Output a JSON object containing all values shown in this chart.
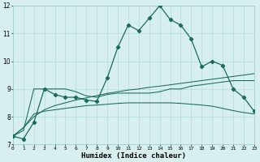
{
  "xlabel": "Humidex (Indice chaleur)",
  "background_color": "#d7f0ef",
  "line_color": "#1a6b5a",
  "x": [
    0,
    1,
    2,
    3,
    4,
    5,
    6,
    7,
    8,
    9,
    10,
    11,
    12,
    13,
    14,
    15,
    16,
    17,
    18,
    19,
    20,
    21,
    22,
    23
  ],
  "y_main": [
    7.3,
    7.2,
    7.8,
    9.0,
    8.8,
    8.7,
    8.7,
    8.6,
    8.55,
    9.4,
    10.5,
    11.3,
    11.1,
    11.55,
    12.0,
    11.5,
    11.3,
    10.8,
    9.8,
    10.0,
    9.85,
    9.0,
    8.7,
    8.2
  ],
  "y_flat": [
    7.3,
    7.5,
    9.0,
    9.0,
    9.0,
    9.0,
    8.9,
    8.75,
    8.7,
    8.8,
    8.85,
    8.85,
    8.85,
    8.85,
    8.9,
    9.0,
    9.0,
    9.1,
    9.15,
    9.2,
    9.25,
    9.3,
    9.3,
    9.3
  ],
  "y_lower": [
    7.3,
    7.6,
    8.1,
    8.2,
    8.25,
    8.3,
    8.35,
    8.4,
    8.42,
    8.45,
    8.48,
    8.5,
    8.5,
    8.5,
    8.5,
    8.5,
    8.48,
    8.45,
    8.42,
    8.38,
    8.3,
    8.22,
    8.15,
    8.1
  ],
  "y_diag": [
    7.3,
    7.6,
    8.0,
    8.25,
    8.4,
    8.5,
    8.6,
    8.68,
    8.76,
    8.84,
    8.9,
    8.96,
    9.0,
    9.06,
    9.1,
    9.15,
    9.2,
    9.25,
    9.3,
    9.35,
    9.4,
    9.45,
    9.5,
    9.55
  ],
  "ylim": [
    7,
    12
  ],
  "yticks": [
    7,
    8,
    9,
    10,
    11,
    12
  ],
  "xlim": [
    0,
    23
  ],
  "xticks": [
    0,
    1,
    2,
    3,
    4,
    5,
    6,
    7,
    8,
    9,
    10,
    11,
    12,
    13,
    14,
    15,
    16,
    17,
    18,
    19,
    20,
    21,
    22,
    23
  ]
}
